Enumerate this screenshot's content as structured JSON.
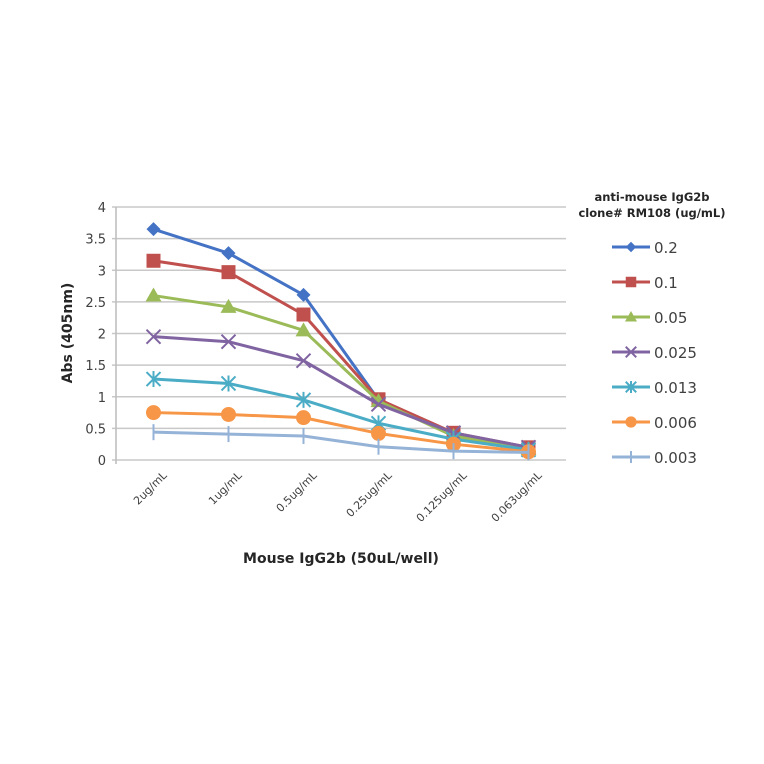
{
  "chart_data": {
    "type": "line",
    "title": "",
    "xlabel": "Mouse IgG2b (50uL/well)",
    "ylabel": "Abs (405nm)",
    "ylim": [
      0,
      4
    ],
    "yticks": [
      "0",
      "0.5",
      "1",
      "1.5",
      "2",
      "2.5",
      "3",
      "3.5",
      "4"
    ],
    "grid": true,
    "legend_position": "right",
    "legend_title": [
      "anti-mouse IgG2b",
      "clone# RM108 (ug/mL)"
    ],
    "categories": [
      "2ug/mL",
      "1ug/mL",
      "0.5ug/mL",
      "0.25ug/mL",
      "0.125ug/mL",
      "0.063ug/mL"
    ],
    "series": [
      {
        "name": "0.2",
        "color": "#4472C4",
        "marker": "diamond",
        "values": [
          3.65,
          3.27,
          2.61,
          0.95,
          0.42,
          0.2
        ]
      },
      {
        "name": "0.1",
        "color": "#C0504D",
        "marker": "square",
        "values": [
          3.15,
          2.97,
          2.3,
          0.96,
          0.43,
          0.2
        ]
      },
      {
        "name": "0.05",
        "color": "#9BBB59",
        "marker": "triangle",
        "values": [
          2.6,
          2.42,
          2.05,
          0.93,
          0.38,
          0.17
        ]
      },
      {
        "name": "0.025",
        "color": "#8064A2",
        "marker": "x",
        "values": [
          1.95,
          1.87,
          1.57,
          0.88,
          0.43,
          0.2
        ]
      },
      {
        "name": "0.013",
        "color": "#4BACC6",
        "marker": "star",
        "values": [
          1.28,
          1.21,
          0.95,
          0.58,
          0.33,
          0.16
        ]
      },
      {
        "name": "0.006",
        "color": "#F79646",
        "marker": "circle",
        "values": [
          0.75,
          0.72,
          0.67,
          0.42,
          0.25,
          0.13
        ]
      },
      {
        "name": "0.003",
        "color": "#95B3D7",
        "marker": "plus",
        "values": [
          0.44,
          0.41,
          0.38,
          0.21,
          0.14,
          0.12
        ]
      }
    ]
  }
}
